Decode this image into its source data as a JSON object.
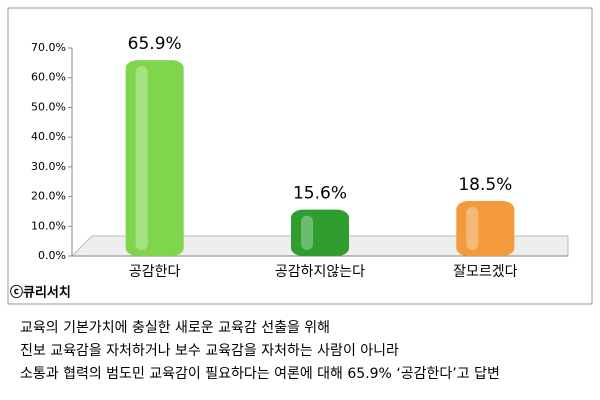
{
  "chart_data": {
    "type": "bar",
    "categories": [
      "공감한다",
      "공감하지않는다",
      "잘모르겠다"
    ],
    "values": [
      65.9,
      15.6,
      18.5
    ],
    "value_labels": [
      "65.9%",
      "15.6%",
      "18.5%"
    ],
    "colors": [
      "#7fd64c",
      "#2f9e2f",
      "#f29a3c"
    ],
    "ylim": [
      0,
      70
    ],
    "yticks": [
      {
        "value": 0,
        "label": "0.0%"
      },
      {
        "value": 10,
        "label": "10.0%"
      },
      {
        "value": 20,
        "label": "20.0%"
      },
      {
        "value": 30,
        "label": "30.0%"
      },
      {
        "value": 40,
        "label": "40.0%"
      },
      {
        "value": 50,
        "label": "50.0%"
      },
      {
        "value": 60,
        "label": "60.0%"
      },
      {
        "value": 70,
        "label": "70.0%"
      }
    ],
    "grid": false
  },
  "source": "ⓒ큐리서치",
  "caption": [
    "교육의 기본가치에 충실한 새로운 교육감 선출을 위해",
    "진보 교육감을 자처하거나 보수 교육감을 자처하는 사람이 아니라",
    "소통과 협력의 범도민 교육감이 필요하다는 여론에 대해 65.9% ‘공감한다’고 답변"
  ]
}
